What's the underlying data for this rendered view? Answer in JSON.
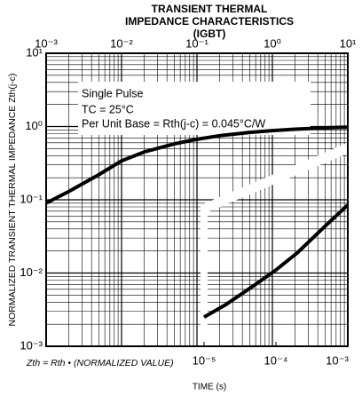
{
  "chart_data": {
    "type": "line",
    "title": [
      "TRANSIENT THERMAL",
      "IMPEDANCE CHARACTERISTICS",
      "(IGBT)"
    ],
    "y_label": "NORMALIZED TRANSIENT THERMAL IMPEDANCE  Zth(j-c)",
    "x_label": "TIME (s)",
    "note": "Zth = Rth • (NORMALIZED VALUE)",
    "annotations": [
      "Single Pulse",
      "TC = 25°C",
      "Per Unit Base = Rth(j-c) = 0.045°C/W"
    ],
    "log_x": true,
    "log_y": true,
    "grid": true,
    "xlim": [
      0.001,
      10
    ],
    "xticks": [
      {
        "value": 0.001,
        "label": "10⁻³"
      },
      {
        "value": 0.01,
        "label": "10⁻²"
      },
      {
        "value": 0.1,
        "label": "10⁻¹"
      },
      {
        "value": 1,
        "label": "10⁰"
      },
      {
        "value": 10,
        "label": "10¹"
      }
    ],
    "x2lim": [
      1e-05,
      0.001
    ],
    "x2ticks": [
      {
        "value": 1e-05,
        "label": "10⁻⁵"
      },
      {
        "value": 0.0001,
        "label": "10⁻⁴"
      },
      {
        "value": 0.001,
        "label": "10⁻³"
      }
    ],
    "ylim": [
      0.001,
      10
    ],
    "yticks": [
      {
        "value": 0.001,
        "label": "10⁻³"
      },
      {
        "value": 0.01,
        "label": "10⁻²"
      },
      {
        "value": 0.1,
        "label": "10⁻¹"
      },
      {
        "value": 1,
        "label": "10⁰"
      },
      {
        "value": 10,
        "label": "10¹"
      }
    ],
    "series": [
      {
        "color": "#000000",
        "x": [
          0.001,
          0.002,
          0.005,
          0.01,
          0.02,
          0.05,
          0.1,
          0.2,
          0.5,
          1,
          2,
          5,
          10
        ],
        "values": [
          0.09,
          0.13,
          0.22,
          0.34,
          0.45,
          0.58,
          0.67,
          0.75,
          0.83,
          0.88,
          0.92,
          0.96,
          0.98
        ]
      },
      {
        "color": "#000000",
        "axis": "x2",
        "x": [
          1e-05,
          2e-05,
          5e-05,
          0.0001,
          0.0002,
          0.0005,
          0.001
        ],
        "values": [
          0.0025,
          0.0037,
          0.0068,
          0.011,
          0.019,
          0.045,
          0.085
        ]
      }
    ]
  }
}
